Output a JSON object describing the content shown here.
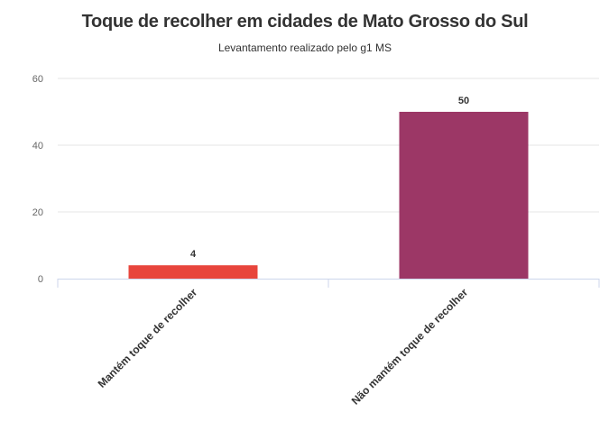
{
  "chart_data": {
    "type": "bar",
    "title": "Toque de recolher em cidades de Mato Grosso do Sul",
    "subtitle": "Levantamento realizado pelo g1 MS",
    "categories": [
      "Mantém toque de recolher",
      "Não mantém toque de recolher"
    ],
    "values": [
      4,
      50
    ],
    "colors": [
      "#e8453c",
      "#9c3766"
    ],
    "yticks": [
      0,
      20,
      40,
      60
    ],
    "ylim": [
      0,
      60
    ],
    "grid": true,
    "legend": "none"
  }
}
